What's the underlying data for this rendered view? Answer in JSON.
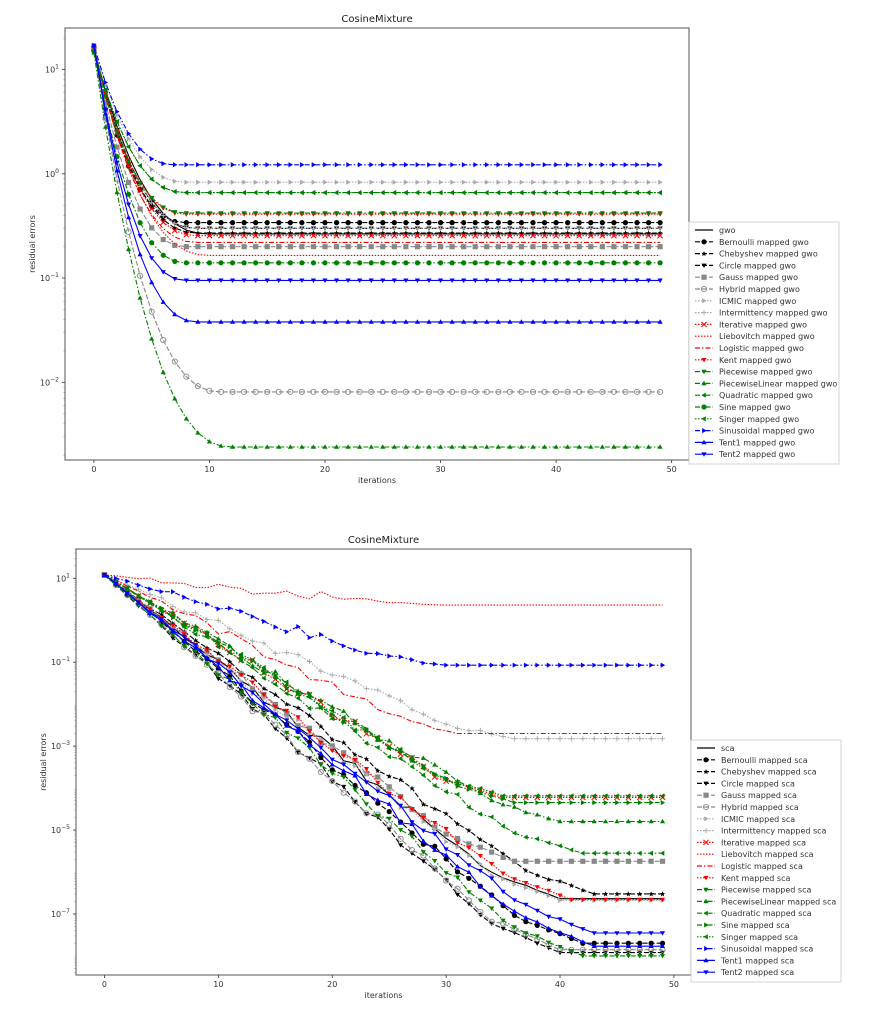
{
  "chart_data": [
    {
      "type": "line",
      "title": "CosineMixture",
      "xlabel": "iterations",
      "ylabel": "residual errors",
      "yscale": "log",
      "xlim": [
        -2.5,
        51.5
      ],
      "ylim": [
        0.0018,
        25
      ],
      "xticks": [
        0,
        10,
        20,
        30,
        40,
        50
      ],
      "yticks": [
        {
          "value": 10,
          "label": "10^1"
        },
        {
          "value": 1,
          "label": "10^0"
        },
        {
          "value": 0.1,
          "label": "10^-1"
        },
        {
          "value": 0.01,
          "label": "10^-2"
        }
      ],
      "legend_position": "right",
      "iterations": 50,
      "series": [
        {
          "name": "gwo",
          "color": "#000000",
          "dash": "solid",
          "marker": "none",
          "start": 15.5,
          "final": 0.265,
          "settle": 10
        },
        {
          "name": "Bernoulli mapped gwo",
          "color": "#000000",
          "dash": "dashed",
          "marker": "circle",
          "start": 16,
          "final": 0.34,
          "settle": 8
        },
        {
          "name": "Chebyshev mapped gwo",
          "color": "#000000",
          "dash": "dashed",
          "marker": "star",
          "start": 16,
          "final": 0.27,
          "settle": 9
        },
        {
          "name": "Circle mapped gwo",
          "color": "#000000",
          "dash": "dashed",
          "marker": "tri-down",
          "start": 16,
          "final": 0.3,
          "settle": 9
        },
        {
          "name": "Gauss mapped gwo",
          "color": "#888888",
          "dash": "dashed",
          "marker": "square",
          "start": 16,
          "final": 0.2,
          "settle": 8
        },
        {
          "name": "Hybrid mapped gwo",
          "color": "#888888",
          "dash": "dashed",
          "marker": "hollow-circle",
          "start": 16,
          "final": 0.0081,
          "settle": 11
        },
        {
          "name": "ICMIC mapped gwo",
          "color": "#aaaaaa",
          "dash": "dotted",
          "marker": "tri-right",
          "start": 16,
          "final": 0.83,
          "settle": 8
        },
        {
          "name": "Intermittency mapped gwo",
          "color": "#aaaaaa",
          "dash": "dotted",
          "marker": "plus",
          "start": 16,
          "final": 0.3,
          "settle": 9
        },
        {
          "name": "Iterative mapped gwo",
          "color": "#ff0000",
          "dash": "dotted",
          "marker": "x-square",
          "start": 16,
          "final": 0.255,
          "settle": 9
        },
        {
          "name": "Liebovitch mapped gwo",
          "color": "#ff0000",
          "dash": "dotted",
          "marker": "none",
          "start": 16,
          "final": 0.165,
          "settle": 10
        },
        {
          "name": "Logistic mapped gwo",
          "color": "#ff0000",
          "dash": "dashdot",
          "marker": "none",
          "start": 16,
          "final": 0.22,
          "settle": 9
        },
        {
          "name": "Kent mapped gwo",
          "color": "#ff0000",
          "dash": "dotted",
          "marker": "tri-down",
          "start": 16,
          "final": 0.41,
          "settle": 8
        },
        {
          "name": "Piecewise mapped gwo",
          "color": "#008000",
          "dash": "dashdot",
          "marker": "tri-down",
          "start": 14.5,
          "final": 0.42,
          "settle": 8
        },
        {
          "name": "PiecewiseLinear mapped gwo",
          "color": "#008000",
          "dash": "dashdot",
          "marker": "tri-up",
          "start": 14.5,
          "final": 0.0024,
          "settle": 12
        },
        {
          "name": "Quadratic mapped gwo",
          "color": "#008000",
          "dash": "dashdot",
          "marker": "tri-left",
          "start": 15,
          "final": 0.66,
          "settle": 8
        },
        {
          "name": "Sine mapped gwo",
          "color": "#008000",
          "dash": "dashdot",
          "marker": "circle",
          "start": 15,
          "final": 0.14,
          "settle": 8
        },
        {
          "name": "Singer mapped gwo",
          "color": "#008000",
          "dash": "dotted",
          "marker": "tri-left",
          "start": 15,
          "final": 0.66,
          "settle": 8
        },
        {
          "name": "Sinusoidal mapped gwo",
          "color": "#0000ff",
          "dash": "dashdot",
          "marker": "tri-right",
          "start": 17,
          "final": 1.22,
          "settle": 7
        },
        {
          "name": "Tent1 mapped gwo",
          "color": "#0000ff",
          "dash": "solid",
          "marker": "tri-up",
          "start": 17,
          "final": 0.038,
          "settle": 9
        },
        {
          "name": "Tent2 mapped gwo",
          "color": "#0000ff",
          "dash": "solid",
          "marker": "tri-down",
          "start": 17,
          "final": 0.095,
          "settle": 8
        }
      ]
    },
    {
      "type": "line",
      "title": "CosineMixture",
      "xlabel": "iterations",
      "ylabel": "residual errors",
      "yscale": "log",
      "xlim": [
        -2.5,
        51.5
      ],
      "ylim": [
        3.5e-09,
        50
      ],
      "xticks": [
        0,
        10,
        20,
        30,
        40,
        50
      ],
      "yticks": [
        {
          "value": 10,
          "label": "10^1"
        },
        {
          "value": 0.1,
          "label": "10^-1"
        },
        {
          "value": 0.001,
          "label": "10^-3"
        },
        {
          "value": 1e-05,
          "label": "10^-5"
        },
        {
          "value": 1e-07,
          "label": "10^-7"
        }
      ],
      "legend_position": "right",
      "iterations": 50,
      "series": [
        {
          "name": "sca",
          "color": "#000000",
          "dash": "solid",
          "marker": "none",
          "start": 12,
          "final": 2.3e-07,
          "settle": 40
        },
        {
          "name": "Bernoulli mapped sca",
          "color": "#000000",
          "dash": "dashed",
          "marker": "circle",
          "start": 12,
          "final": 2e-08,
          "settle": 42
        },
        {
          "name": "Chebyshev mapped sca",
          "color": "#000000",
          "dash": "dashed",
          "marker": "star",
          "start": 12,
          "final": 3e-07,
          "settle": 43
        },
        {
          "name": "Circle mapped sca",
          "color": "#000000",
          "dash": "dashed",
          "marker": "tri-down",
          "start": 12,
          "final": 1.2e-08,
          "settle": 40
        },
        {
          "name": "Gauss mapped sca",
          "color": "#888888",
          "dash": "dashed",
          "marker": "square",
          "start": 12,
          "final": 1.8e-06,
          "settle": 36
        },
        {
          "name": "Hybrid mapped sca",
          "color": "#888888",
          "dash": "dashed",
          "marker": "hollow-circle",
          "start": 12,
          "final": 1.4e-08,
          "settle": 40
        },
        {
          "name": "ICMIC mapped sca",
          "color": "#aaaaaa",
          "dash": "dotted",
          "marker": "tri-right",
          "start": 12,
          "final": 2.1e-07,
          "settle": 40
        },
        {
          "name": "Intermittency mapped sca",
          "color": "#aaaaaa",
          "dash": "dotted",
          "marker": "plus",
          "start": 12,
          "final": 0.0015,
          "settle": 36
        },
        {
          "name": "Iterative mapped sca",
          "color": "#ff0000",
          "dash": "dotted",
          "marker": "x-square",
          "start": 12,
          "final": 6e-05,
          "settle": 35
        },
        {
          "name": "Liebovitch mapped sca",
          "color": "#ff0000",
          "dash": "dotted",
          "marker": "none",
          "start": 12,
          "final": 2.3,
          "settle": 30
        },
        {
          "name": "Logistic mapped sca",
          "color": "#ff0000",
          "dash": "dashdot",
          "marker": "none",
          "start": 12,
          "final": 0.002,
          "settle": 31
        },
        {
          "name": "Kent mapped sca",
          "color": "#ff0000",
          "dash": "dotted",
          "marker": "tri-down",
          "start": 12,
          "final": 2.2e-07,
          "settle": 41
        },
        {
          "name": "Piecewise mapped sca",
          "color": "#008000",
          "dash": "dashdot",
          "marker": "tri-down",
          "start": 12,
          "final": 1e-08,
          "settle": 42
        },
        {
          "name": "PiecewiseLinear mapped sca",
          "color": "#008000",
          "dash": "dashdot",
          "marker": "tri-up",
          "start": 12,
          "final": 1.6e-05,
          "settle": 40
        },
        {
          "name": "Quadratic mapped sca",
          "color": "#008000",
          "dash": "dashdot",
          "marker": "tri-left",
          "start": 12,
          "final": 2.8e-06,
          "settle": 42
        },
        {
          "name": "Sine mapped sca",
          "color": "#008000",
          "dash": "dashdot",
          "marker": "tri-right",
          "start": 12,
          "final": 4.5e-05,
          "settle": 36
        },
        {
          "name": "Singer mapped sca",
          "color": "#008000",
          "dash": "dotted",
          "marker": "tri-left",
          "start": 12,
          "final": 6.5e-05,
          "settle": 35
        },
        {
          "name": "Sinusoidal mapped sca",
          "color": "#0000ff",
          "dash": "dashdot",
          "marker": "tri-right",
          "start": 12,
          "final": 0.085,
          "settle": 30
        },
        {
          "name": "Tent1 mapped sca",
          "color": "#0000ff",
          "dash": "solid",
          "marker": "tri-up",
          "start": 12,
          "final": 1.7e-08,
          "settle": 43
        },
        {
          "name": "Tent2 mapped sca",
          "color": "#0000ff",
          "dash": "solid",
          "marker": "tri-down",
          "start": 12,
          "final": 3.5e-08,
          "settle": 43
        }
      ]
    }
  ]
}
